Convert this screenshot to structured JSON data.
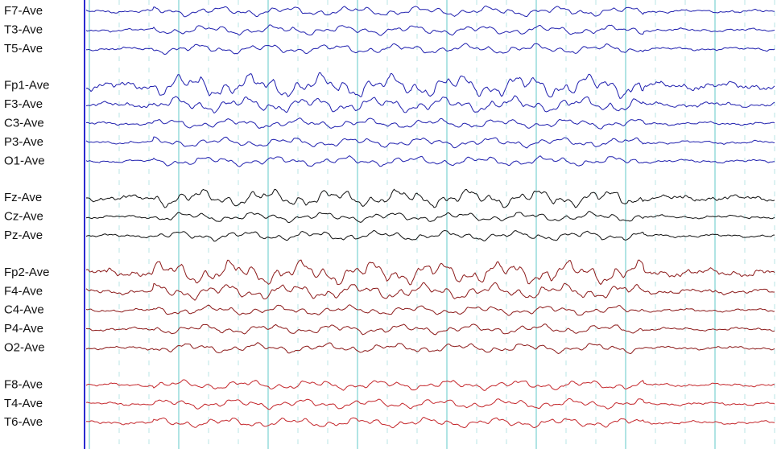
{
  "groups": [
    {
      "color": "#1f1fae",
      "channels": [
        "F7-Ave",
        "T3-Ave",
        "T5-Ave"
      ]
    },
    {
      "color": "#1f1fae",
      "channels": [
        "Fp1-Ave",
        "F3-Ave",
        "C3-Ave",
        "P3-Ave",
        "O1-Ave"
      ]
    },
    {
      "color": "#111111",
      "channels": [
        "Fz-Ave",
        "Cz-Ave",
        "Pz-Ave"
      ]
    },
    {
      "color": "#8c1a1a",
      "channels": [
        "Fp2-Ave",
        "F4-Ave",
        "C4-Ave",
        "P4-Ave",
        "O2-Ave"
      ]
    },
    {
      "color": "#c4262b",
      "channels": [
        "F8-Ave",
        "T4-Ave",
        "T6-Ave"
      ]
    }
  ]
}
